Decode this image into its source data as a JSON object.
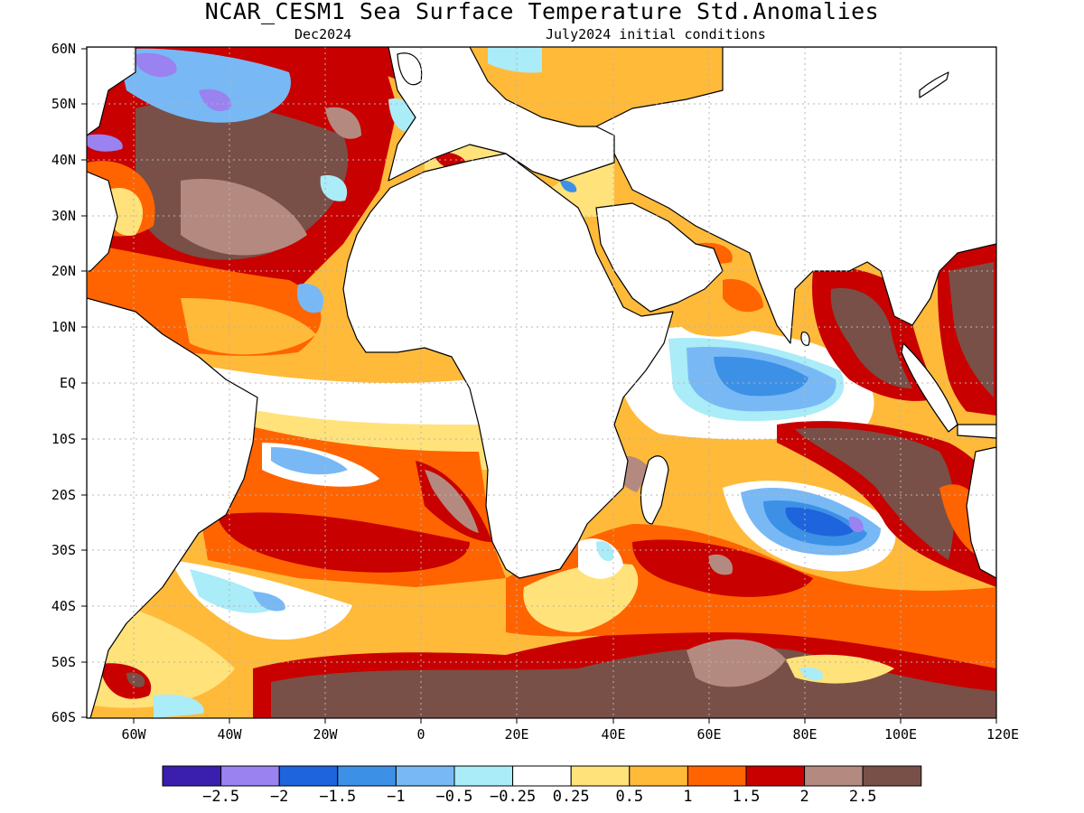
{
  "title": "NCAR_CESM1 Sea Surface Temperature Std.Anomalies",
  "subtitle_left": "Dec2024",
  "subtitle_right": "July2024 initial conditions",
  "lat_labels": [
    "60N",
    "50N",
    "40N",
    "30N",
    "20N",
    "10N",
    "EQ",
    "10S",
    "20S",
    "30S",
    "40S",
    "50S",
    "60S"
  ],
  "lon_labels": [
    "60W",
    "40W",
    "20W",
    "0",
    "20E",
    "40E",
    "60E",
    "80E",
    "100E",
    "120E"
  ],
  "colorbar": {
    "colors": [
      "#3a1fae",
      "#9a82f0",
      "#1e64dc",
      "#3c91e6",
      "#78b9f5",
      "#aaecf8",
      "#ffffff",
      "#ffe27a",
      "#ffba3a",
      "#ff6400",
      "#c80000",
      "#b48a80",
      "#785048"
    ],
    "labels": [
      "−2.5",
      "−2",
      "−1.5",
      "−1",
      "−0.5",
      "−0.25",
      "0.25",
      "0.5",
      "1",
      "1.5",
      "2",
      "2.5"
    ]
  },
  "colors": {
    "land": "#ffffff",
    "coastline": "#000000",
    "grid": "#b4b4b4"
  }
}
